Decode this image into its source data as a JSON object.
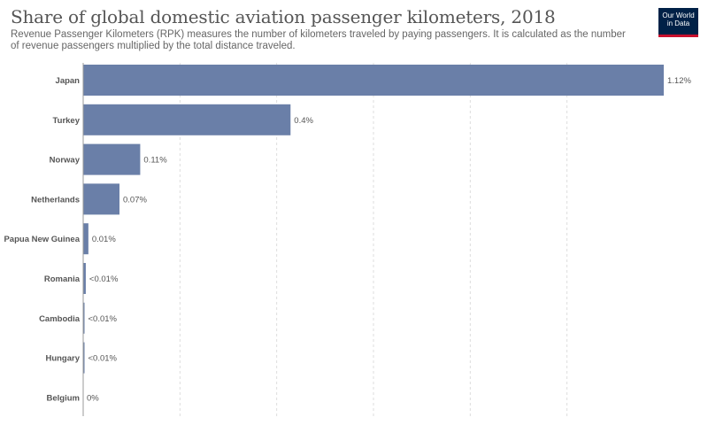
{
  "header": {
    "title": "Share of global domestic aviation passenger kilometers, 2018",
    "subtitle": "Revenue Passenger Kilometers (RPK) measures the number of kilometers traveled by paying passengers. It is calculated as the number of revenue passengers multiplied by the total distance traveled."
  },
  "logo": {
    "line1": "Our World",
    "line2": "in Data"
  },
  "colors": {
    "bar": "#6a7fa8",
    "grid": "#dddddd",
    "axis": "#999999",
    "text": "#555555"
  },
  "chart_data": {
    "type": "bar",
    "orientation": "horizontal",
    "title": "Share of global domestic aviation passenger kilometers, 2018",
    "categories": [
      "Japan",
      "Turkey",
      "Norway",
      "Netherlands",
      "Papua New Guinea",
      "Romania",
      "Cambodia",
      "Hungary",
      "Belgium"
    ],
    "values": [
      1.12,
      0.4,
      0.11,
      0.07,
      0.01,
      0.005,
      0.002,
      0.001,
      0
    ],
    "value_labels": [
      "1.12%",
      "0.4%",
      "0.11%",
      "0.07%",
      "0.01%",
      "<0.01%",
      "<0.01%",
      "<0.01%",
      "0%"
    ],
    "unit": "%",
    "xlim": [
      0,
      1.12
    ],
    "grid": true
  }
}
